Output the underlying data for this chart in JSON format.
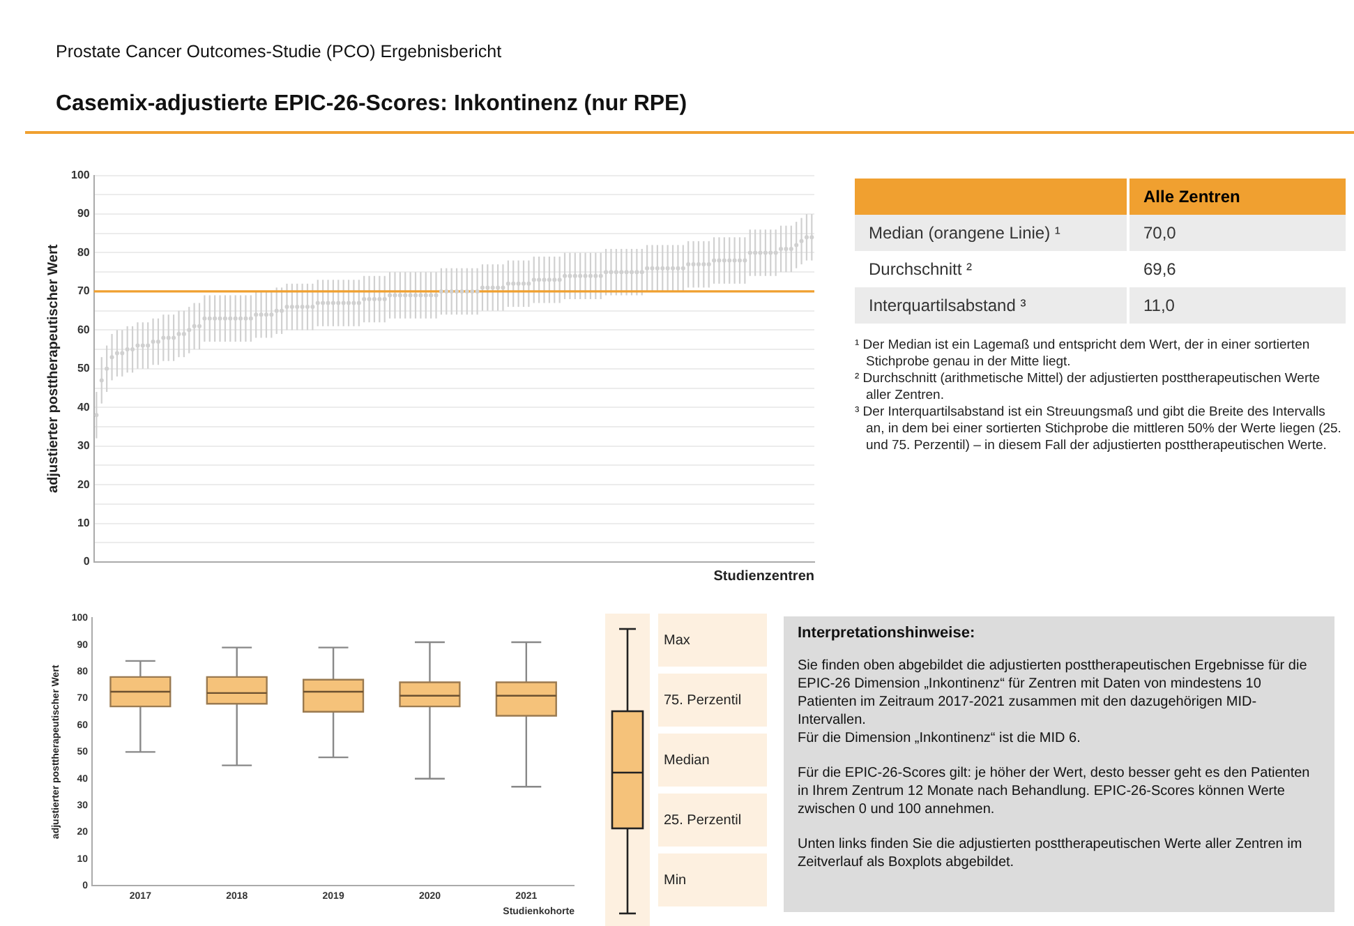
{
  "chart_data": [
    {
      "type": "scatter",
      "subtitle": "Prostate Cancer Outcomes-Studie (PCO) Ergebnisbericht",
      "title": "Casemix-adjustierte EPIC-26-Scores: Inkontinenz (nur RPE)",
      "xlabel": "Studienzentren",
      "ylabel": "adjustierter posttherapeutischer Wert",
      "color": "#d0d0d0",
      "marker": "circle",
      "tick_labels": "y",
      "grid": "y",
      "ylim": [
        0,
        100
      ],
      "yticks": [
        0,
        {
          "value": 5,
          "label": null
        },
        10,
        {
          "value": 15,
          "label": null
        },
        20,
        {
          "value": 25,
          "label": null
        },
        30,
        {
          "value": 35,
          "label": null
        },
        40,
        {
          "value": 45,
          "label": null
        },
        50,
        {
          "value": 55,
          "label": null
        },
        60,
        {
          "value": 65,
          "label": null
        },
        70,
        {
          "value": 75,
          "label": null
        },
        80,
        {
          "value": 85,
          "label": null
        },
        90,
        {
          "value": 95,
          "label": null
        },
        100
      ],
      "ref_lines": [
        {
          "axis": "y",
          "value": 70,
          "color": "#f0a030"
        }
      ],
      "categories": [
        null,
        null,
        null,
        null,
        null,
        null,
        null,
        null,
        null,
        null,
        null,
        null,
        null,
        null,
        null,
        null,
        null,
        null,
        null,
        null,
        null,
        null,
        null,
        null,
        null,
        null,
        null,
        null,
        null,
        null,
        null,
        null,
        null,
        null,
        null,
        null,
        null,
        null,
        null,
        null,
        null,
        null,
        null,
        null,
        null,
        null,
        null,
        null,
        null,
        null,
        null,
        null,
        null,
        null,
        null,
        null,
        null,
        null,
        null,
        null,
        null,
        null,
        null,
        null,
        null,
        null,
        null,
        null,
        null,
        null,
        null,
        null,
        null,
        null,
        null,
        null,
        null,
        null,
        null,
        null,
        null,
        null,
        null,
        null,
        null,
        null,
        null,
        null,
        null,
        null,
        null,
        null,
        null,
        null,
        null,
        null,
        null,
        null,
        null,
        null,
        null,
        null,
        null,
        null,
        null,
        null,
        null,
        null,
        null,
        null,
        null,
        null,
        null,
        null,
        null,
        null,
        null,
        null,
        null,
        null,
        null,
        null,
        null,
        null,
        null,
        null,
        null,
        null,
        null,
        null,
        null,
        null,
        null,
        null,
        null,
        null,
        null,
        null,
        null,
        null
      ],
      "values": [
        38,
        47,
        50,
        53,
        54,
        54,
        55,
        55,
        56,
        56,
        56,
        57,
        57,
        58,
        58,
        58,
        59,
        59,
        60,
        61,
        61,
        63,
        63,
        63,
        63,
        63,
        63,
        63,
        63,
        63,
        63,
        64,
        64,
        64,
        64,
        65,
        65,
        66,
        66,
        66,
        66,
        66,
        66,
        67,
        67,
        67,
        67,
        67,
        67,
        67,
        67,
        67,
        68,
        68,
        68,
        68,
        68,
        69,
        69,
        69,
        69,
        69,
        69,
        69,
        69,
        69,
        69,
        70,
        70,
        70,
        70,
        70,
        70,
        70,
        70,
        71,
        71,
        71,
        71,
        71,
        72,
        72,
        72,
        72,
        72,
        73,
        73,
        73,
        73,
        73,
        73,
        74,
        74,
        74,
        74,
        74,
        74,
        74,
        74,
        75,
        75,
        75,
        75,
        75,
        75,
        75,
        75,
        76,
        76,
        76,
        76,
        76,
        76,
        76,
        76,
        77,
        77,
        77,
        77,
        77,
        78,
        78,
        78,
        78,
        78,
        78,
        78,
        80,
        80,
        80,
        80,
        80,
        80,
        81,
        81,
        81,
        82,
        83,
        84,
        84
      ],
      "errors": [
        6,
        6,
        6,
        6,
        6,
        6,
        6,
        6,
        6,
        6,
        6,
        6,
        6,
        6,
        6,
        6,
        6,
        6,
        6,
        6,
        6,
        6,
        6,
        6,
        6,
        6,
        6,
        6,
        6,
        6,
        6,
        6,
        6,
        6,
        6,
        6,
        6,
        6,
        6,
        6,
        6,
        6,
        6,
        6,
        6,
        6,
        6,
        6,
        6,
        6,
        6,
        6,
        6,
        6,
        6,
        6,
        6,
        6,
        6,
        6,
        6,
        6,
        6,
        6,
        6,
        6,
        6,
        6,
        6,
        6,
        6,
        6,
        6,
        6,
        6,
        6,
        6,
        6,
        6,
        6,
        6,
        6,
        6,
        6,
        6,
        6,
        6,
        6,
        6,
        6,
        6,
        6,
        6,
        6,
        6,
        6,
        6,
        6,
        6,
        6,
        6,
        6,
        6,
        6,
        6,
        6,
        6,
        6,
        6,
        6,
        6,
        6,
        6,
        6,
        6,
        6,
        6,
        6,
        6,
        6,
        6,
        6,
        6,
        6,
        6,
        6,
        6,
        6,
        6,
        6,
        6,
        6,
        6,
        6,
        6,
        6,
        6,
        6,
        6,
        6
      ]
    },
    {
      "type": "other",
      "annotations": [
        "Alle Zentren",
        "Median (orangene Linie) ¹",
        "70,0",
        "Durchschnitt ²",
        "69,6",
        "Interquartilsabstand ³",
        "11,0",
        "¹ Der Median ist ein Lagemaß und entspricht dem Wert, der in einer sortierten Stichprobe genau in der Mitte liegt.",
        "² Durchschnitt (arithmetische Mittel) der adjustierten posttherapeutischen Werte aller Zentren.",
        "³ Der Interquartilsabstand ist ein Streuungsmaß und gibt die Breite des Intervalls an, in dem bei einer sortierten Stichprobe die mittleren 50% der Werte liegen (25. und 75. Perzentil) – in diesem Fall der adjustierten posttherapeutischen Werte."
      ]
    },
    {
      "type": "box",
      "xlabel": "Studienkohorte",
      "ylabel": "adjustierter posttherapeutischer Wert",
      "color": "#f5c27a",
      "categories": [
        "2017",
        "2018",
        "2019",
        "2020",
        "2021"
      ],
      "ylim": [
        0,
        100
      ],
      "yticks": [
        0,
        10,
        20,
        30,
        40,
        50,
        60,
        70,
        80,
        90,
        100
      ],
      "boxes": [
        {
          "low": 50,
          "q1": 67,
          "median": 72.5,
          "q3": 78,
          "high": 84
        },
        {
          "low": 45,
          "q1": 68,
          "median": 72,
          "q3": 78,
          "high": 89
        },
        {
          "low": 48,
          "q1": 65,
          "median": 72.5,
          "q3": 77,
          "high": 89
        },
        {
          "low": 40,
          "q1": 67,
          "median": 71,
          "q3": 76,
          "high": 91
        },
        {
          "low": 37,
          "q1": 63.5,
          "median": 71,
          "q3": 76,
          "high": 91
        }
      ]
    },
    {
      "type": "other",
      "annotations": [
        "Max",
        "75. Perzentil",
        "Median",
        "25. Perzentil",
        "Min"
      ]
    },
    {
      "type": "other",
      "title": "Interpretationshinweise:",
      "annotations": [
        "Sie finden oben abgebildet die adjustierten posttherapeutischen Ergebnisse für die EPIC-26 Dimension „Inkontinenz“ für Zentren mit Daten von mindestens 10 Patienten im Zeitraum 2017-2021 zusammen mit den dazugehörigen MID-Intervallen.",
        "Für die Dimension „Inkontinenz“ ist die MID 6.",
        "Für die EPIC-26-Scores gilt: je höher der Wert, desto besser geht es den Patienten in Ihrem Zentrum 12 Monate nach Behandlung. EPIC-26-Scores können Werte zwischen 0 und 100 annehmen.",
        "Unten links finden Sie die adjustierten posttherapeutischen Werte aller Zentren im Zeitverlauf als Boxplots abgebildet."
      ]
    }
  ]
}
